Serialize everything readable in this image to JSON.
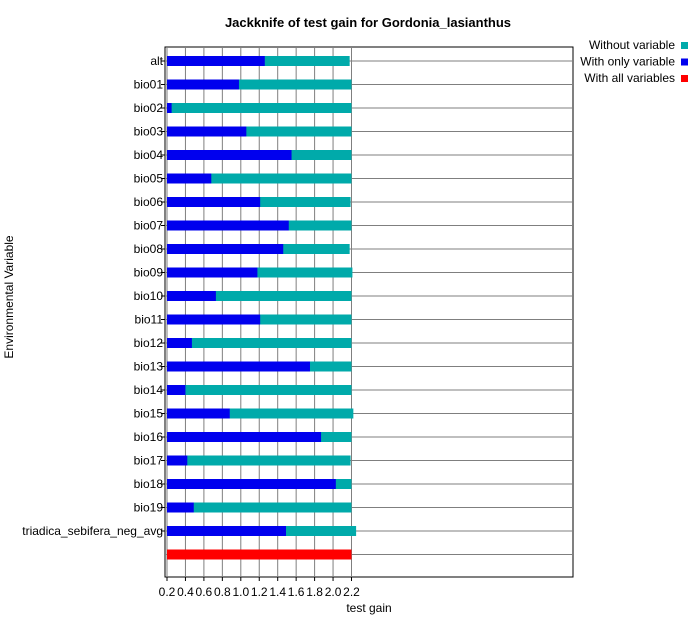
{
  "chart_data": {
    "type": "bar",
    "orientation": "horizontal",
    "title": "Jackknife of test gain for Gordonia_lasianthus",
    "xlabel": "test gain",
    "ylabel": "Environmental Variable",
    "xlim": [
      0.15,
      2.33
    ],
    "xticks": [
      "0.2",
      "0.4",
      "0.6",
      "0.8",
      "1.0",
      "1.2",
      "1.4",
      "1.6",
      "1.8",
      "2.0",
      "2.2"
    ],
    "grid": true,
    "legend_position": "top-right",
    "categories": [
      "alt",
      "bio01",
      "bio02",
      "bio03",
      "bio04",
      "bio05",
      "bio06",
      "bio07",
      "bio08",
      "bio09",
      "bio10",
      "bio11",
      "bio12",
      "bio13",
      "bio14",
      "bio15",
      "bio16",
      "bio17",
      "bio18",
      "bio19",
      "triadica_sebifera_neg_avg"
    ],
    "series": [
      {
        "name": "Without variable",
        "color": "#00aaaa",
        "values": [
          2.18,
          2.2,
          2.2,
          2.2,
          2.2,
          2.2,
          2.19,
          2.2,
          2.18,
          2.21,
          2.2,
          2.2,
          2.2,
          2.2,
          2.2,
          2.22,
          2.2,
          2.19,
          2.2,
          2.2,
          2.25
        ]
      },
      {
        "name": "With only variable",
        "color": "#0000ee",
        "values": [
          1.26,
          0.98,
          0.25,
          1.06,
          1.55,
          0.68,
          1.21,
          1.52,
          1.46,
          1.18,
          0.73,
          1.21,
          0.47,
          1.75,
          0.4,
          0.88,
          1.87,
          0.42,
          2.03,
          0.49,
          1.49
        ]
      }
    ],
    "all_variables": {
      "name": "With all variables",
      "color": "#ff0000",
      "value": 2.2
    }
  }
}
